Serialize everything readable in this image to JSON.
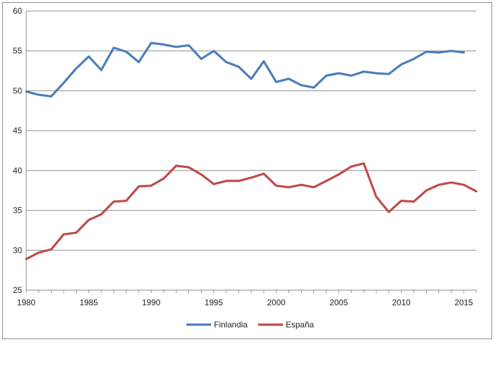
{
  "chart_data": {
    "type": "line",
    "title": "",
    "xlabel": "",
    "ylabel": "",
    "xlim": [
      1980,
      2016
    ],
    "ylim": [
      25,
      60
    ],
    "y_ticks": [
      25,
      30,
      35,
      40,
      45,
      50,
      55,
      60
    ],
    "x_ticks": [
      1980,
      1985,
      1990,
      1995,
      2000,
      2005,
      2010,
      2015
    ],
    "grid": "horizontal",
    "legend": "bottom-center",
    "x": [
      1980,
      1981,
      1982,
      1983,
      1984,
      1985,
      1986,
      1987,
      1988,
      1989,
      1990,
      1991,
      1992,
      1993,
      1994,
      1995,
      1996,
      1997,
      1998,
      1999,
      2000,
      2001,
      2002,
      2003,
      2004,
      2005,
      2006,
      2007,
      2008,
      2009,
      2010,
      2011,
      2012,
      2013,
      2014,
      2015,
      2016
    ],
    "series": [
      {
        "name": "Finlandia",
        "color": "#4a7ebb",
        "values": [
          49.9,
          49.5,
          49.3,
          51.0,
          52.8,
          54.3,
          52.6,
          55.4,
          54.9,
          53.6,
          56.0,
          55.8,
          55.5,
          55.7,
          54.0,
          55.0,
          53.6,
          53.0,
          51.5,
          53.7,
          51.1,
          51.5,
          50.7,
          50.4,
          51.9,
          52.2,
          51.9,
          52.4,
          52.2,
          52.1,
          53.3,
          54.0,
          54.9,
          54.8,
          55.0,
          54.8,
          null
        ]
      },
      {
        "name": "España",
        "color": "#be4b48",
        "values": [
          28.9,
          29.7,
          30.1,
          32.0,
          32.2,
          33.8,
          34.5,
          36.1,
          36.2,
          38.0,
          38.1,
          39.0,
          40.6,
          40.4,
          39.5,
          38.3,
          38.7,
          38.7,
          39.1,
          39.6,
          38.1,
          37.9,
          38.2,
          37.9,
          38.7,
          39.5,
          40.5,
          40.9,
          36.7,
          34.8,
          36.2,
          36.1,
          37.5,
          38.2,
          38.5,
          38.2,
          37.4
        ]
      }
    ]
  }
}
